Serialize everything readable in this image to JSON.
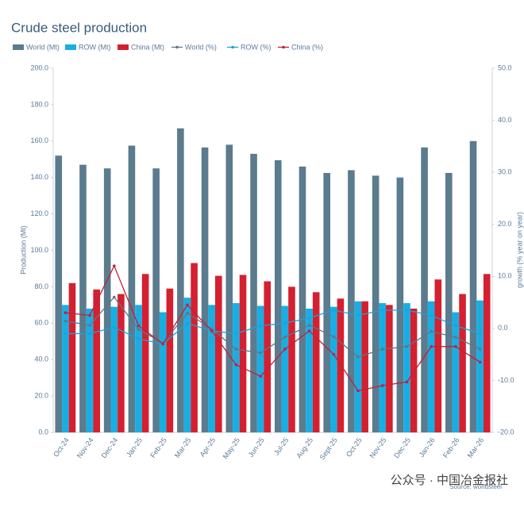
{
  "chart_data": {
    "type": "bar",
    "title": "Crude steel production",
    "y_label": "Production (Mt)",
    "y2_label": "growth (% year on year)",
    "source": "Source: worldsteel",
    "watermark": "公众号 · 中国冶金报社",
    "categories": [
      "Oct-24",
      "Nov-24",
      "Dec-24",
      "Jan-25",
      "Feb-25",
      "Mar-25",
      "Apr-25",
      "May-25",
      "Jun-25",
      "Jul-25",
      "Aug-25",
      "Sept-25",
      "Oct-25",
      "Nov-25",
      "Dec-25",
      "Jan-26",
      "Feb-26",
      "Mar-26"
    ],
    "series": [
      {
        "name": "World (Mt)",
        "color": "#5b7b8e",
        "mark": "bar",
        "values": [
          152,
          147,
          145,
          157.5,
          145,
          167,
          156.5,
          158,
          153,
          149.5,
          146,
          142.5,
          144,
          141,
          140,
          156.5,
          142.5,
          160
        ]
      },
      {
        "name": "ROW (Mt)",
        "color": "#19aee3",
        "mark": "bar",
        "values": [
          70,
          68,
          69,
          70,
          66,
          74,
          70,
          71,
          69.5,
          69.5,
          68,
          69,
          72,
          71,
          71,
          72,
          66,
          72.5
        ]
      },
      {
        "name": "China (Mt)",
        "color": "#d42030",
        "mark": "bar",
        "values": [
          82,
          78.5,
          76,
          87,
          79,
          93,
          86,
          86.5,
          83,
          80,
          77,
          73.5,
          72,
          70,
          68,
          84,
          76,
          87
        ]
      },
      {
        "name": "World (%)",
        "color": "#5f7787",
        "mark": "line",
        "axis": "y2",
        "values": [
          1.4,
          0.6,
          6,
          -0.2,
          -2.8,
          2.9,
          -0.1,
          -4,
          -4.7,
          -1.7,
          0.6,
          -1.6,
          -5.5,
          -4,
          -3.5,
          -0.6,
          -1.7,
          -4
        ]
      },
      {
        "name": "ROW (%)",
        "color": "#1aa3d9",
        "mark": "line",
        "axis": "y2",
        "values": [
          -1,
          -1,
          0.2,
          -2,
          -3,
          1,
          -0.5,
          -1,
          0.5,
          1,
          2,
          3.5,
          2.5,
          3.5,
          3.5,
          2.5,
          0.5,
          -1
        ]
      },
      {
        "name": "China (%)",
        "color": "#c2203a",
        "mark": "line",
        "axis": "y2",
        "values": [
          3,
          2.5,
          12,
          0.5,
          -3,
          4.5,
          -0.5,
          -7,
          -9.2,
          -4,
          -0.5,
          -5,
          -12,
          -11,
          -10.3,
          -3.5,
          -3.5,
          -6.5
        ]
      }
    ],
    "ylim": [
      0,
      200
    ],
    "yticks": [
      {
        "value": 0,
        "label": "0.0"
      },
      {
        "value": 20,
        "label": "20.0"
      },
      {
        "value": 40,
        "label": "40.0"
      },
      {
        "value": 60,
        "label": "60.0"
      },
      {
        "value": 80,
        "label": "80.0"
      },
      {
        "value": 100,
        "label": "100.0"
      },
      {
        "value": 120,
        "label": "120.0"
      },
      {
        "value": 140,
        "label": "140.0"
      },
      {
        "value": 160,
        "label": "160.0"
      },
      {
        "value": 180,
        "label": "180.0"
      },
      {
        "value": 200,
        "label": "200.0"
      }
    ],
    "y2lim": [
      -20,
      50
    ],
    "y2ticks": [
      {
        "value": -20,
        "label": "-20.0"
      },
      {
        "value": -10,
        "label": "-10.0"
      },
      {
        "value": 0,
        "label": "0.0"
      },
      {
        "value": 10,
        "label": "10.0"
      },
      {
        "value": 20,
        "label": "20.0"
      },
      {
        "value": 30,
        "label": "30.0"
      },
      {
        "value": 40,
        "label": "40.0"
      },
      {
        "value": 50,
        "label": "50.0"
      }
    ]
  }
}
